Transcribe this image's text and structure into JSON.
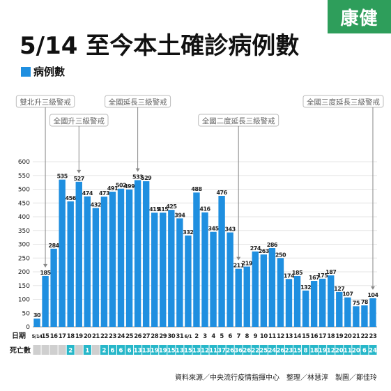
{
  "logo": {
    "text": "康健",
    "color": "#2e9e5b"
  },
  "header": {
    "title": "5/14 至今本土確診病例數"
  },
  "legend": {
    "label": "病例數",
    "color": "#1f8fe0"
  },
  "source": "資料來源／中央流行疫情指揮中心　整理／林慧淳　製圖／鄭佳玲",
  "chart_data": {
    "type": "bar",
    "title": "5/14 至今本土確診病例數",
    "series": [
      {
        "name": "病例數",
        "color": "#1f8fe0",
        "values": [
          30,
          185,
          284,
          535,
          456,
          527,
          474,
          432,
          473,
          491,
          502,
          499,
          533,
          529,
          415,
          415,
          425,
          394,
          332,
          488,
          416,
          345,
          476,
          343,
          211,
          219,
          274,
          263,
          286,
          250,
          174,
          185,
          132,
          167,
          175,
          187,
          127,
          107,
          75,
          78,
          104
        ]
      }
    ],
    "categories": [
      "5/14",
      "15",
      "16",
      "17",
      "18",
      "19",
      "20",
      "21",
      "22",
      "23",
      "24",
      "25",
      "26",
      "27",
      "28",
      "29",
      "30",
      "31",
      "6/1",
      "2",
      "3",
      "4",
      "5",
      "6",
      "7",
      "8",
      "9",
      "10",
      "11",
      "12",
      "13",
      "14",
      "15",
      "16",
      "17",
      "18",
      "19",
      "20",
      "21",
      "22",
      "23"
    ],
    "ylim": [
      0,
      600
    ],
    "yticks": [
      0,
      50,
      100,
      150,
      200,
      250,
      300,
      350,
      400,
      450,
      500,
      550,
      600
    ],
    "grid": true,
    "row_labels": {
      "date": "日期",
      "deaths": "死亡數"
    },
    "deaths": [
      "",
      "",
      "",
      "",
      "2",
      "",
      "1",
      "",
      "2",
      "6",
      "6",
      "6",
      "13",
      "13",
      "19",
      "19",
      "15",
      "13",
      "15",
      "13",
      "12",
      "11",
      "37",
      "26",
      "36",
      "26",
      "22",
      "25",
      "24",
      "26",
      "23",
      "15",
      "8",
      "18",
      "19",
      "12",
      "20",
      "11",
      "20",
      "6",
      "24"
    ],
    "annotations": [
      {
        "text": "雙北升三級警戒",
        "index": 1,
        "level": 0
      },
      {
        "text": "全國升三級警戒",
        "index": 5,
        "level": 1
      },
      {
        "text": "全國延長三級警戒",
        "index": 12,
        "level": 0
      },
      {
        "text": "全國二度延長三級警戒",
        "index": 24,
        "level": 1
      },
      {
        "text": "全國三度延長三級警戒",
        "index": 40,
        "level": 0
      }
    ]
  }
}
